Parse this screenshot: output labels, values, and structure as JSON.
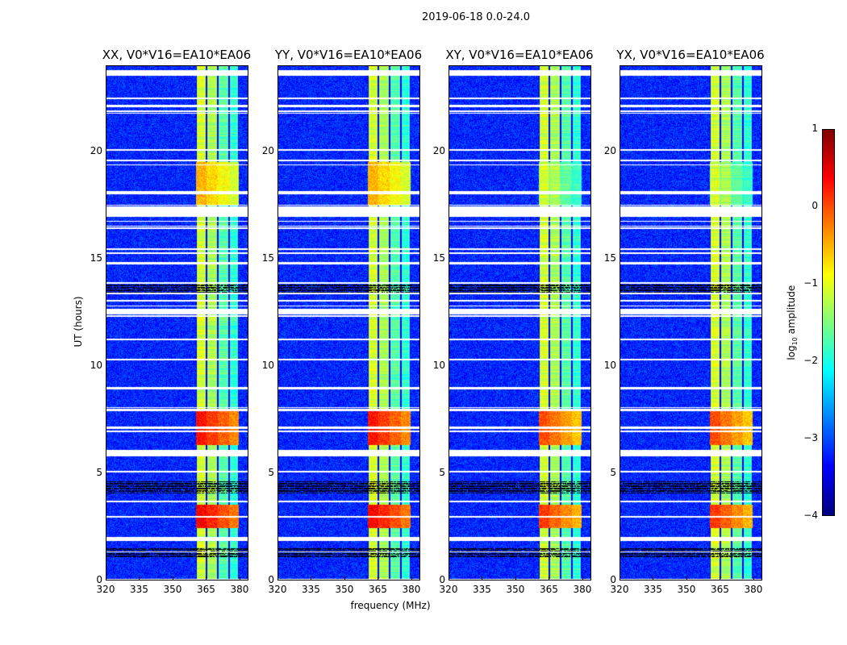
{
  "chart_data": {
    "type": "heatmap",
    "title": "2019-06-18 0.0-24.0",
    "xlabel": "frequency (MHz)",
    "ylabel": "UT (hours)",
    "xlim": [
      320,
      384
    ],
    "ylim": [
      0,
      24
    ],
    "xticks": [
      "320",
      "335",
      "350",
      "365",
      "380"
    ],
    "xtick_values": [
      320,
      335,
      350,
      365,
      380
    ],
    "yticks": [
      "0",
      "5",
      "10",
      "15",
      "20"
    ],
    "ytick_values": [
      0,
      5,
      10,
      15,
      20
    ],
    "panels": [
      {
        "title": "XX, V0*V16=EA10*EA06"
      },
      {
        "title": "YY, V0*V16=EA10*EA06"
      },
      {
        "title": "XY, V0*V16=EA10*EA06"
      },
      {
        "title": "YX, V0*V16=EA10*EA06"
      }
    ],
    "colorbar": {
      "label_prefix": "log",
      "label_sub": "10",
      "label_suffix": " amplitude",
      "range": [
        -4,
        1
      ],
      "ticks": [
        "1",
        "0",
        "−1",
        "−2",
        "−3",
        "−4"
      ],
      "tick_values": [
        1,
        0,
        -1,
        -2,
        -3,
        -4
      ],
      "colormap": "jet"
    },
    "background_log_amplitude": -3.2,
    "rfi_band_mhz": [
      360.5,
      380
    ],
    "subband_edges_mhz": [
      360.5,
      365.5,
      370.5,
      375.5,
      380
    ],
    "subband_levels": [
      -1.1,
      -1.3,
      -1.7,
      -1.9
    ],
    "flagged_hours": [
      [
        23.55,
        23.8
      ],
      [
        17.0,
        17.45
      ],
      [
        14.75,
        14.85
      ],
      [
        12.4,
        12.65
      ],
      [
        5.75,
        6.05
      ],
      [
        1.8,
        2.0
      ]
    ],
    "zero_hours": [
      [
        13.35,
        13.8
      ],
      [
        4.05,
        4.6
      ],
      [
        1.0,
        1.5
      ]
    ],
    "strong_rfi_hours": [
      [
        6.3,
        8.0,
        0.3
      ],
      [
        2.4,
        3.5,
        0.4
      ],
      [
        17.5,
        19.5,
        -0.5
      ]
    ]
  }
}
